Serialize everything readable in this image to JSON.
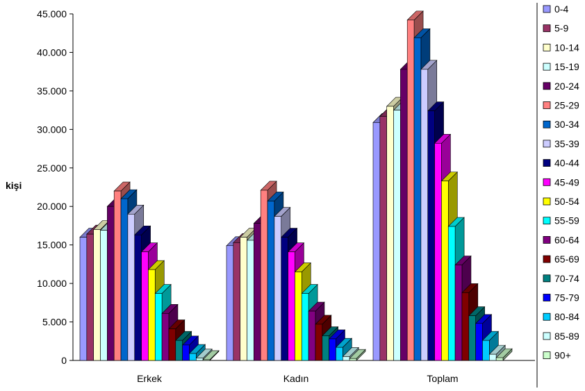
{
  "chart_data": {
    "type": "bar",
    "ylabel": "kişi",
    "ylim": [
      0,
      45000
    ],
    "yticks": [
      "0",
      "5.000",
      "10.000",
      "15.000",
      "20.000",
      "25.000",
      "30.000",
      "35.000",
      "40.000",
      "45.000"
    ],
    "categories": [
      "Erkek",
      "Kadın",
      "Toplam"
    ],
    "legend_position": "right",
    "grid": false,
    "series": [
      {
        "name": "0-4",
        "color": "#9999FF",
        "values": [
          16000,
          14900,
          30900
        ]
      },
      {
        "name": "5-9",
        "color": "#993366",
        "values": [
          16400,
          15300,
          31700
        ]
      },
      {
        "name": "10-14",
        "color": "#FFFFCC",
        "values": [
          17000,
          16000,
          33000
        ]
      },
      {
        "name": "15-19",
        "color": "#CCFFFF",
        "values": [
          16900,
          15600,
          32500
        ]
      },
      {
        "name": "20-24",
        "color": "#660066",
        "values": [
          20000,
          17800,
          37800
        ]
      },
      {
        "name": "25-29",
        "color": "#FF8080",
        "values": [
          22000,
          22100,
          44200
        ]
      },
      {
        "name": "30-34",
        "color": "#0066CC",
        "values": [
          21000,
          20700,
          41900
        ]
      },
      {
        "name": "35-39",
        "color": "#CCCCFF",
        "values": [
          19000,
          18700,
          37800
        ]
      },
      {
        "name": "40-44",
        "color": "#000080",
        "values": [
          16300,
          16000,
          32400
        ]
      },
      {
        "name": "45-49",
        "color": "#FF00FF",
        "values": [
          14100,
          14100,
          28200
        ]
      },
      {
        "name": "50-54",
        "color": "#FFFF00",
        "values": [
          11800,
          11500,
          23300
        ]
      },
      {
        "name": "55-59",
        "color": "#00FFFF",
        "values": [
          8700,
          8700,
          17400
        ]
      },
      {
        "name": "60-64",
        "color": "#800080",
        "values": [
          6100,
          6400,
          12400
        ]
      },
      {
        "name": "65-69",
        "color": "#800000",
        "values": [
          4100,
          4700,
          8800
        ]
      },
      {
        "name": "70-74",
        "color": "#008080",
        "values": [
          2600,
          3200,
          5800
        ]
      },
      {
        "name": "75-79",
        "color": "#0000FF",
        "values": [
          2000,
          2800,
          4800
        ]
      },
      {
        "name": "80-84",
        "color": "#00CCFF",
        "values": [
          900,
          1700,
          2600
        ]
      },
      {
        "name": "85-89",
        "color": "#CCFFFF",
        "values": [
          300,
          500,
          800
        ]
      },
      {
        "name": "90+",
        "color": "#CCFFCC",
        "values": [
          100,
          250,
          350
        ]
      }
    ]
  }
}
